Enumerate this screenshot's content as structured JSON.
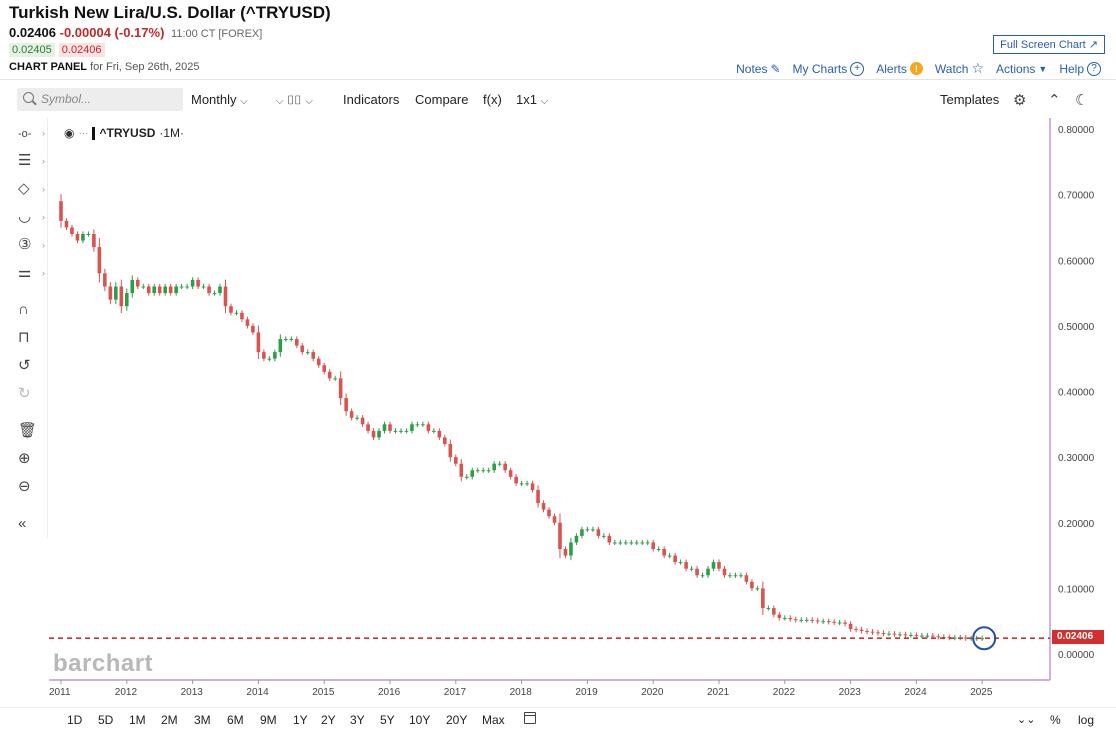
{
  "header": {
    "title": "Turkish New Lira/U.S. Dollar (^TRYUSD)",
    "last": "0.02406",
    "change": "-0.00004 (-0.17%)",
    "time": "11:00 CT [FOREX]",
    "bid": "0.02405",
    "ask": "0.02406",
    "panel_label": "CHART PANEL",
    "panel_date": "for Fri, Sep 26th, 2025",
    "fullscreen": "Full Screen Chart ↗",
    "links": {
      "notes": "Notes",
      "mycharts": "My Charts",
      "alerts": "Alerts",
      "watch": "Watch",
      "actions": "Actions",
      "help": "Help"
    }
  },
  "toolbar": {
    "search_placeholder": "Symbol...",
    "period": "Monthly",
    "indicators": "Indicators",
    "compare": "Compare",
    "fx": "f(x)",
    "layout": "1x1",
    "templates": "Templates"
  },
  "symbol_label": {
    "symbol": "^TRYUSD",
    "interval": "·1M·"
  },
  "watermark": "barchart",
  "last_price_tag": "0.02406",
  "ranges": [
    "1D",
    "5D",
    "1M",
    "2M",
    "3M",
    "6M",
    "9M",
    "1Y",
    "2Y",
    "3Y",
    "5Y",
    "10Y",
    "20Y",
    "Max"
  ],
  "bottom_right": {
    "pct": "%",
    "log": "log"
  },
  "colors": {
    "up": "#2e9d4a",
    "down": "#d9534f",
    "accent": "#2a5db0",
    "tag": "#d32f2f",
    "axis_line": "#b480c8"
  },
  "chart_data": {
    "type": "candlestick",
    "title": "",
    "interval": "monthly",
    "ylim": [
      0.0,
      0.8
    ],
    "y_ticks": [
      "0.80000",
      "0.70000",
      "0.60000",
      "0.50000",
      "0.40000",
      "0.30000",
      "0.20000",
      "0.10000",
      "0.00000"
    ],
    "x_ticks": [
      "2011",
      "2012",
      "2013",
      "2014",
      "2015",
      "2016",
      "2017",
      "2018",
      "2019",
      "2020",
      "2021",
      "2022",
      "2023",
      "2024",
      "2025"
    ],
    "last_price": 0.02406,
    "close_series": {
      "start": "2011-01",
      "values": [
        0.66,
        0.65,
        0.64,
        0.63,
        0.64,
        0.64,
        0.62,
        0.58,
        0.56,
        0.54,
        0.56,
        0.53,
        0.55,
        0.57,
        0.56,
        0.56,
        0.55,
        0.56,
        0.55,
        0.56,
        0.55,
        0.56,
        0.56,
        0.56,
        0.57,
        0.56,
        0.56,
        0.55,
        0.55,
        0.56,
        0.53,
        0.52,
        0.52,
        0.51,
        0.5,
        0.49,
        0.46,
        0.45,
        0.45,
        0.46,
        0.48,
        0.48,
        0.48,
        0.47,
        0.46,
        0.46,
        0.45,
        0.44,
        0.43,
        0.42,
        0.42,
        0.39,
        0.37,
        0.36,
        0.36,
        0.35,
        0.34,
        0.33,
        0.34,
        0.35,
        0.34,
        0.34,
        0.34,
        0.34,
        0.35,
        0.35,
        0.35,
        0.34,
        0.34,
        0.33,
        0.32,
        0.3,
        0.29,
        0.27,
        0.27,
        0.28,
        0.28,
        0.28,
        0.28,
        0.29,
        0.29,
        0.28,
        0.27,
        0.26,
        0.26,
        0.26,
        0.25,
        0.23,
        0.22,
        0.21,
        0.2,
        0.16,
        0.15,
        0.17,
        0.18,
        0.19,
        0.19,
        0.19,
        0.18,
        0.18,
        0.17,
        0.17,
        0.17,
        0.17,
        0.17,
        0.17,
        0.17,
        0.17,
        0.16,
        0.16,
        0.15,
        0.15,
        0.14,
        0.14,
        0.13,
        0.13,
        0.12,
        0.12,
        0.13,
        0.14,
        0.13,
        0.12,
        0.12,
        0.12,
        0.12,
        0.11,
        0.1,
        0.1,
        0.07,
        0.07,
        0.06,
        0.055,
        0.055,
        0.053,
        0.052,
        0.052,
        0.052,
        0.051,
        0.05,
        0.05,
        0.049,
        0.048,
        0.048,
        0.046,
        0.038,
        0.037,
        0.035,
        0.034,
        0.033,
        0.032,
        0.031,
        0.031,
        0.03,
        0.03,
        0.029,
        0.029,
        0.028,
        0.028,
        0.028,
        0.027,
        0.026,
        0.026,
        0.025,
        0.025,
        0.025,
        0.024,
        0.024,
        0.024,
        0.02406
      ]
    }
  }
}
